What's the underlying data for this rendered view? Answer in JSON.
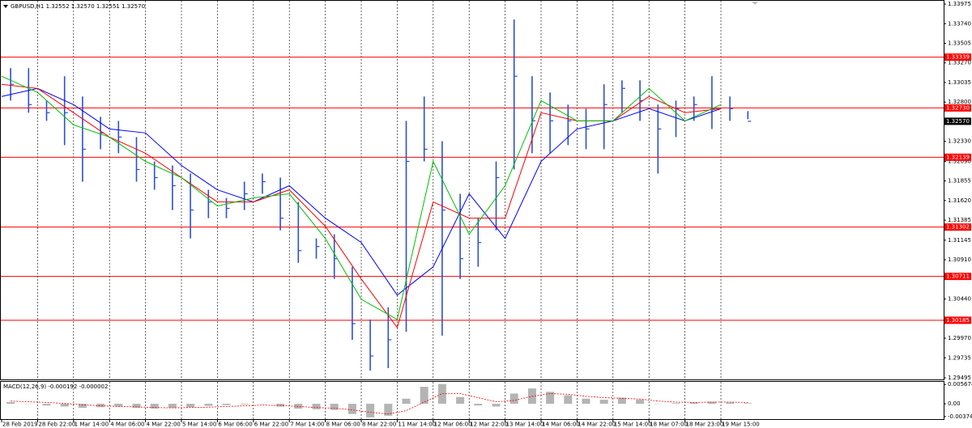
{
  "chart_data": [
    {
      "type": "ohlc",
      "title": "GBPUSD,H1 1.32552 1.32570 1.32551 1.32570",
      "color": "#2b4fd6",
      "categories": [
        "28 Feb 2019",
        "28 Feb 22:00",
        "1 Mar 14:00",
        "4 Mar 06:00",
        "4 Mar 22:00",
        "5 Mar 14:00",
        "6 Mar 06:00",
        "6 Mar 22:00",
        "7 Mar 14:00",
        "8 Mar 06:00",
        "8 Mar 22:00",
        "11 Mar 14:00",
        "12 Mar 06:00",
        "12 Mar 22:00",
        "13 Mar 14:00",
        "14 Mar 06:00",
        "14 Mar 22:00",
        "15 Mar 14:00",
        "18 Mar 07:00",
        "18 Mar 23:00",
        "19 Mar 15:00"
      ],
      "bars": {
        "high": [
          1.33207,
          1.33207,
          1.32818,
          1.3311,
          1.32867,
          1.32624,
          1.32575,
          1.32381,
          1.32089,
          1.32041,
          1.31944,
          1.31749,
          1.31652,
          1.31846,
          1.31944,
          1.31895,
          1.31603,
          1.31166,
          1.31215,
          1.30826,
          1.30194,
          1.3034,
          1.32575,
          1.32867,
          1.32332,
          1.31701,
          1.31409,
          1.32089,
          1.3379,
          1.3311,
          1.32916,
          1.3277,
          1.32721,
          1.33013,
          1.33061,
          1.33061,
          1.3277,
          1.32818,
          1.32867,
          1.3311,
          1.32867,
          1.32692
        ],
        "low": [
          1.32818,
          1.32673,
          1.32575,
          1.32284,
          1.31846,
          1.32235,
          1.32187,
          1.31846,
          1.31749,
          1.31506,
          1.31166,
          1.31409,
          1.31409,
          1.31506,
          1.31701,
          1.31263,
          1.30874,
          1.30923,
          1.3068,
          1.29951,
          1.29582,
          1.29611,
          1.30048,
          1.32089,
          1.3,
          1.3068,
          1.30826,
          1.31263,
          1.31992,
          1.32187,
          1.32187,
          1.32284,
          1.32235,
          1.32235,
          1.32673,
          1.32575,
          1.31944,
          1.32381,
          1.32575,
          1.32478,
          1.32575,
          1.32595
        ],
        "close": [
          1.33013,
          1.3277,
          1.32673,
          1.32673,
          1.32235,
          1.3243,
          1.32381,
          1.31992,
          1.31895,
          1.31798,
          1.31506,
          1.31603,
          1.31526,
          1.31701,
          1.31846,
          1.31409,
          1.3102,
          1.31069,
          1.30923,
          1.30145,
          1.29757,
          1.29951,
          1.32089,
          1.32235,
          1.31506,
          1.30923,
          1.31117,
          1.31895,
          1.3311,
          1.32575,
          1.32575,
          1.32575,
          1.32478,
          1.3277,
          1.32964,
          1.32818,
          1.32478,
          1.32721,
          1.3277,
          1.32721,
          1.32721,
          1.3257
        ]
      },
      "series": [
        {
          "color": "#0000ff",
          "values": [
            1.32867,
            1.32964,
            1.3277,
            1.32478,
            1.3243,
            1.32041,
            1.31749,
            1.31603,
            1.31798,
            1.31409,
            1.31117,
            1.30486,
            1.30826,
            1.31701,
            1.31166,
            1.32089,
            1.32478,
            1.32575,
            1.32721,
            1.32575,
            1.32721
          ]
        },
        {
          "color": "#ff0000",
          "values": [
            1.33013,
            1.32964,
            1.32673,
            1.32381,
            1.32187,
            1.31895,
            1.31603,
            1.31603,
            1.31749,
            1.31312,
            1.3068,
            1.30097,
            1.31603,
            1.31409,
            1.31409,
            1.32673,
            1.32575,
            1.32575,
            1.32867,
            1.32673,
            1.32721
          ]
        },
        {
          "color": "#00c000",
          "values": [
            1.3311,
            1.32916,
            1.32527,
            1.32381,
            1.32089,
            1.31895,
            1.31555,
            1.31652,
            1.31701,
            1.31166,
            1.30437,
            1.30194,
            1.32089,
            1.31215,
            1.31798,
            1.32818,
            1.32575,
            1.32575,
            1.32964,
            1.32575,
            1.3277
          ]
        }
      ],
      "ylim": [
        1.29466,
        1.34014
      ],
      "yticks": [
        1.33975,
        {
          "value": 1.3374,
          "label": "1.33740"
        },
        1.33505,
        {
          "value": 1.3327,
          "label": "1.33270"
        },
        1.33035,
        {
          "value": 1.328,
          "label": "1.32800"
        },
        {
          "value": 1.3233,
          "label": "1.32330"
        },
        {
          "value": 1.3209,
          "label": "1.32090"
        },
        1.31855,
        {
          "value": 1.3162,
          "label": "1.31620"
        },
        1.31385,
        1.31145,
        {
          "value": 1.3091,
          "label": "1.30910"
        },
        {
          "value": 1.3044,
          "label": "1.30440"
        },
        {
          "value": 1.2997,
          "label": "1.29970"
        },
        1.29735,
        1.29495
      ],
      "levels": [
        1.33339,
        {
          "value": 1.3273,
          "label": "1.32730"
        },
        1.32139,
        1.31302,
        1.30711,
        1.30185
      ],
      "level_color": "#ff0000",
      "last_price": {
        "value": 1.3257,
        "label": "1.32570"
      },
      "grid": true
    },
    {
      "type": "macd",
      "title": "MACD(12,26,9) -0.000192 -0.000002",
      "histogram": {
        "color": "#b4b4b4",
        "values": [
          0.0005,
          0.0,
          -0.0005,
          -0.0008,
          -0.0012,
          -0.001,
          -0.0008,
          -0.0012,
          -0.0014,
          -0.0012,
          -0.001,
          -0.0006,
          -0.0004,
          -0.0002,
          -0.0001,
          -0.0008,
          -0.0014,
          -0.0016,
          -0.0018,
          -0.003,
          -0.004,
          -0.0035,
          0.0015,
          0.005,
          0.0058,
          0.002,
          -0.0005,
          -0.0008,
          0.003,
          0.0045,
          0.0035,
          0.0025,
          0.0015,
          0.0012,
          0.0018,
          0.0012,
          0.0,
          0.0002,
          0.0004,
          0.0006,
          0.0004,
          0.0002
        ]
      },
      "signal": {
        "color": "#ff0000",
        "values": [
          0.0008,
          0.0006,
          0.0004,
          0.0001,
          -0.0003,
          -0.0006,
          -0.0008,
          -0.0009,
          -0.0011,
          -0.0012,
          -0.0011,
          -0.001,
          -0.0008,
          -0.0006,
          -0.0004,
          -0.0005,
          -0.0008,
          -0.0011,
          -0.0013,
          -0.0018,
          -0.0025,
          -0.003,
          -0.002,
          0.0005,
          0.003,
          0.003,
          0.0018,
          0.0006,
          0.001,
          0.0022,
          0.003,
          0.0028,
          0.0022,
          0.0018,
          0.0016,
          0.0014,
          0.0008,
          0.0005,
          0.0004,
          0.0005,
          0.0005,
          0.0004
        ]
      },
      "ylim": [
        -0.0045,
        0.0062
      ],
      "yticks": [
        0.005674,
        {
          "value": 0,
          "label": "0.00"
        },
        -0.003745
      ],
      "grid": true
    }
  ]
}
